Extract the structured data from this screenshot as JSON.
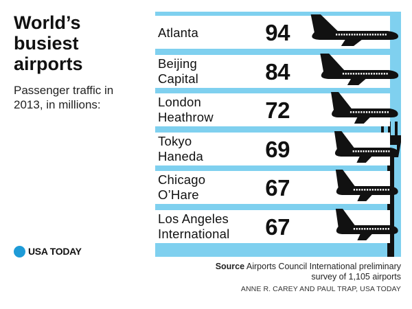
{
  "header": {
    "title_lines": [
      "World’s",
      "busiest",
      "airports"
    ],
    "subtitle_lines": [
      "Passenger traffic in",
      "2013, in millions:"
    ]
  },
  "chart_data": {
    "type": "bar",
    "title": "World’s busiest airports",
    "subtitle": "Passenger traffic in 2013, in millions:",
    "categories": [
      [
        "Atlanta"
      ],
      [
        "Beijing",
        "Capital"
      ],
      [
        "London",
        "Heathrow"
      ],
      [
        "Tokyo",
        "Haneda"
      ],
      [
        "Chicago",
        "O’Hare"
      ],
      [
        "Los Angeles",
        "International"
      ]
    ],
    "values": [
      94,
      84,
      72,
      69,
      67,
      67
    ]
  },
  "footer": {
    "source_label": "Source",
    "source_line1": "Airports Council International preliminary",
    "source_line2": "survey of 1,105 airports",
    "credit": "ANNE R. CAREY AND PAUL TRAP, USA TODAY",
    "logo_text": "USA TODAY"
  },
  "colors": {
    "sky": "#7fd0ef",
    "band": "#ffffff",
    "plane": "#111111",
    "logo_dot": "#1e9bd7"
  },
  "icons": {
    "plane": "airplane-icon",
    "tower": "control-tower-icon",
    "logo": "usa-today-dot-icon"
  }
}
